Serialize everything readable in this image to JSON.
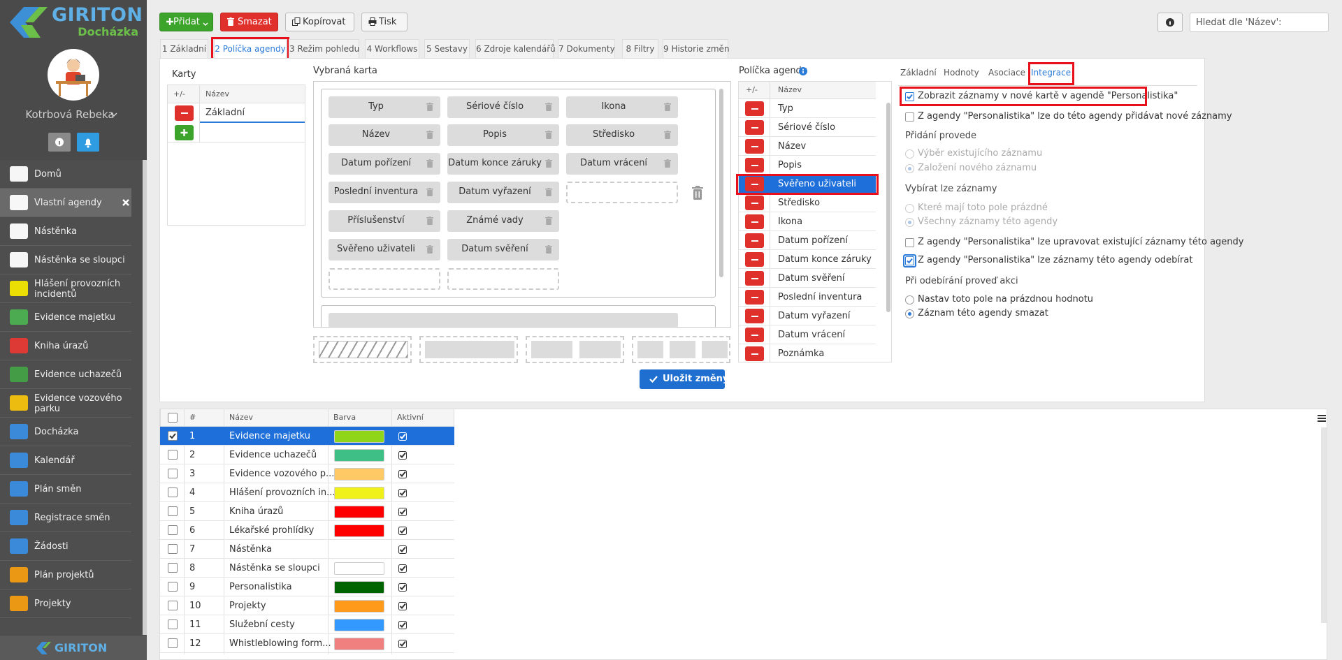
{
  "logo": {
    "brand": "GIRITON",
    "product": "Docházka"
  },
  "user": {
    "name": "Kotrbová Rebeka"
  },
  "sidebar": {
    "items": [
      "Domů",
      "Vlastní agendy",
      "Nástěnka",
      "Nástěnka se sloupci",
      "Hlášení provozních incidentů",
      "Evidence majetku",
      "Kniha úrazů",
      "Evidence uchazečů",
      "Evidence vozového parku",
      "Docházka",
      "Kalendář",
      "Plán směn",
      "Registrace směn",
      "Žádosti",
      "Plán projektů",
      "Projekty"
    ],
    "footer": "GIRITON"
  },
  "toolbar": {
    "buttons": [
      "Přidat",
      "Smazat",
      "Kopírovat",
      "Tisk"
    ],
    "search_placeholder": "Hledat dle 'Název':"
  },
  "tabs": [
    "1 Základní",
    "2 Políčka agendy",
    "3 Režim pohledu",
    "4 Workflows",
    "5 Sestavy",
    "6 Zdroje kalendářů",
    "7 Dokumenty",
    "8 Filtry",
    "9 Historie změn"
  ],
  "cards": {
    "title": "Karty",
    "headers": [
      "+/-",
      "Název"
    ],
    "rows": [
      "Základní"
    ]
  },
  "selected_card": {
    "title": "Vybraná karta",
    "rows": [
      [
        "Typ",
        "Sériové číslo",
        "Ikona"
      ],
      [
        "Název",
        "Popis",
        "Středisko"
      ],
      [
        "Datum pořízení",
        "Datum konce záruky",
        "Datum vrácení"
      ],
      [
        "Poslední inventura",
        "Datum vyřazení"
      ],
      [
        "Příslušenství",
        "Známé vady"
      ],
      [
        "Svěřeno uživateli",
        "Datum svěření"
      ]
    ]
  },
  "fields": {
    "title": "Políčka agendy",
    "headers": [
      "+/-",
      "Název"
    ],
    "rows": [
      "Typ",
      "Sériové číslo",
      "Název",
      "Popis",
      "Svěřeno uživateli",
      "Středisko",
      "Ikona",
      "Datum pořízení",
      "Datum konce záruky",
      "Datum svěření",
      "Poslední inventura",
      "Datum vyřazení",
      "Datum vrácení",
      "Poznámka"
    ]
  },
  "detail_tabs": [
    "Základní",
    "Hodnoty",
    "Asociace",
    "Integrace"
  ],
  "integration": {
    "items": [
      {
        "kind": "checkbox",
        "label": "Zobrazit záznamy v nové kartě v agendě \"Personalistika\"",
        "checked": true,
        "disabled": false
      },
      {
        "kind": "checkbox",
        "label": "Z agendy \"Personalistika\" lze do této agendy přidávat nové záznamy",
        "checked": false,
        "disabled": false
      },
      {
        "kind": "heading",
        "label": "Přidání provede"
      },
      {
        "kind": "radio",
        "label": "Výběr existujícího záznamu",
        "checked": false,
        "disabled": true
      },
      {
        "kind": "radio",
        "label": "Založení nového záznamu",
        "checked": true,
        "disabled": true
      },
      {
        "kind": "heading",
        "label": "Vybírat lze záznamy"
      },
      {
        "kind": "radio",
        "label": "Které mají toto pole prázdné",
        "checked": false,
        "disabled": true
      },
      {
        "kind": "radio",
        "label": "Všechny záznamy této agendy",
        "checked": true,
        "disabled": true
      },
      {
        "kind": "checkbox",
        "label": "Z agendy \"Personalistika\" lze upravovat existující záznamy této agendy",
        "checked": false,
        "disabled": false
      },
      {
        "kind": "checkbox",
        "label": "Z agendy \"Personalistika\" lze záznamy této agendy odebírat",
        "checked": true,
        "disabled": false
      },
      {
        "kind": "heading",
        "label": "Při odebírání proveď akci"
      },
      {
        "kind": "radio",
        "label": "Nastav toto pole na prázdnou hodnotu",
        "checked": false,
        "disabled": false
      },
      {
        "kind": "radio",
        "label": "Záznam této agendy smazat",
        "checked": true,
        "disabled": false
      }
    ]
  },
  "save_button": "Uložit změny",
  "list": {
    "headers": [
      "#",
      "Název",
      "Barva",
      "Aktivní"
    ],
    "rows": [
      {
        "number": "1",
        "name": "Evidence majetku",
        "color": "#8fd61a",
        "active": true
      },
      {
        "number": "2",
        "name": "Evidence uchazečů",
        "color": "#3dbf86",
        "active": true
      },
      {
        "number": "3",
        "name": "Evidence vozového p...",
        "color": "#ffc966",
        "active": true
      },
      {
        "number": "4",
        "name": "Hlášení provozních in...",
        "color": "#f0f01a",
        "active": true
      },
      {
        "number": "5",
        "name": "Kniha úrazů",
        "color": "#ff0000",
        "active": true
      },
      {
        "number": "6",
        "name": "Lékařské prohlídky",
        "color": "#ff0000",
        "active": true
      },
      {
        "number": "7",
        "name": "Nástěnka",
        "color": null,
        "active": true
      },
      {
        "number": "8",
        "name": "Nástěnka se sloupci",
        "color": "#ffffff",
        "active": true
      },
      {
        "number": "9",
        "name": "Personalistika",
        "color": "#006400",
        "active": true
      },
      {
        "number": "10",
        "name": "Projekty",
        "color": "#ff9a1a",
        "active": true
      },
      {
        "number": "11",
        "name": "Služební cesty",
        "color": "#3399ff",
        "active": true
      },
      {
        "number": "12",
        "name": "Whistleblowing form...",
        "color": "#f08080",
        "active": true
      }
    ]
  }
}
